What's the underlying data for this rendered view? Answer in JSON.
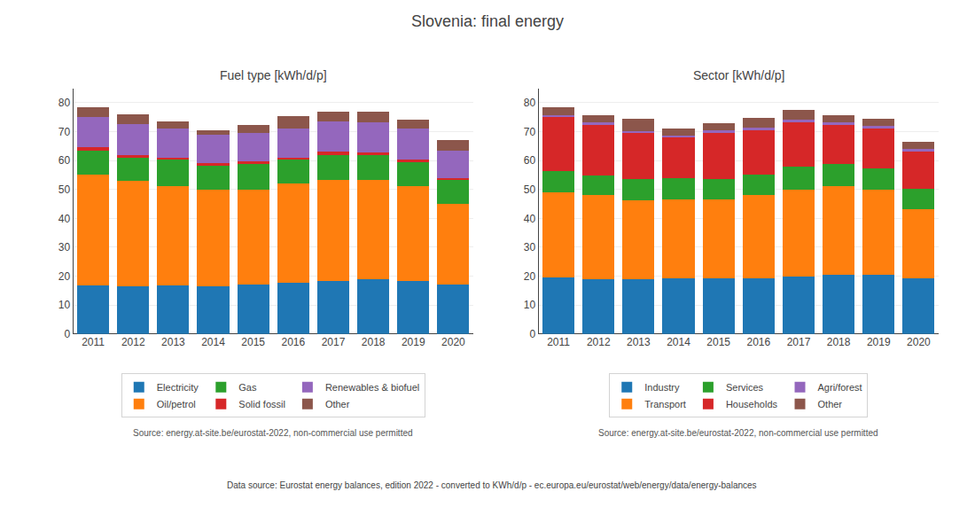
{
  "title": "Slovenia: final energy",
  "annotations": [
    "Data source: Eurostat energy balances, edition 2022 - converted to KWh/d/p - ec.europa.eu/eurostat/web/energy/data/energy-balances"
  ],
  "chart_data": [
    {
      "type": "bar",
      "stacked": true,
      "title": "Fuel type [kWh/d/p]",
      "categories": [
        "2011",
        "2012",
        "2013",
        "2014",
        "2015",
        "2016",
        "2017",
        "2018",
        "2019",
        "2020"
      ],
      "series": [
        {
          "name": "Electricity",
          "color": "#1f77b4",
          "values": [
            16.8,
            16.5,
            16.8,
            16.5,
            17.0,
            17.8,
            18.2,
            18.8,
            18.2,
            17.0
          ]
        },
        {
          "name": "Oil/petrol",
          "color": "#ff7f0e",
          "values": [
            38.2,
            36.5,
            34.3,
            33.5,
            33.0,
            34.2,
            35.0,
            34.5,
            33.0,
            28.0
          ]
        },
        {
          "name": "Gas",
          "color": "#2ca02c",
          "values": [
            8.5,
            8.0,
            9.5,
            8.5,
            9.2,
            8.5,
            8.8,
            8.5,
            8.5,
            8.5
          ]
        },
        {
          "name": "Solid fossil",
          "color": "#d62728",
          "values": [
            1.0,
            1.0,
            0.5,
            0.5,
            0.5,
            0.5,
            1.0,
            1.0,
            0.5,
            0.5
          ]
        },
        {
          "name": "Renewables & biofuel",
          "color": "#9467bd",
          "values": [
            10.5,
            10.5,
            10.0,
            10.0,
            10.0,
            10.0,
            10.5,
            10.5,
            11.0,
            9.5
          ]
        },
        {
          "name": "Other",
          "color": "#8c564b",
          "values": [
            3.5,
            3.5,
            2.5,
            1.5,
            2.5,
            4.5,
            3.5,
            3.5,
            3.0,
            3.5
          ]
        }
      ],
      "ylim": [
        0,
        85
      ],
      "yticks": [
        0,
        10,
        20,
        30,
        40,
        50,
        60,
        70,
        80
      ],
      "grid": true,
      "legend": "bottom",
      "annotations": [
        "Source: energy.at-site.be/eurostat-2022, non-commercial use permitted"
      ]
    },
    {
      "type": "bar",
      "stacked": true,
      "title": "Sector [kWh/d/p]",
      "categories": [
        "2011",
        "2012",
        "2013",
        "2014",
        "2015",
        "2016",
        "2017",
        "2018",
        "2019",
        "2020"
      ],
      "series": [
        {
          "name": "Industry",
          "color": "#1f77b4",
          "values": [
            19.5,
            18.8,
            18.8,
            19.2,
            19.2,
            19.2,
            19.8,
            20.5,
            20.5,
            19.2
          ]
        },
        {
          "name": "Transport",
          "color": "#ff7f0e",
          "values": [
            29.5,
            29.2,
            27.5,
            27.5,
            27.2,
            28.8,
            30.2,
            30.5,
            29.5,
            24.0
          ]
        },
        {
          "name": "Services",
          "color": "#2ca02c",
          "values": [
            7.5,
            6.8,
            7.2,
            7.2,
            7.2,
            7.0,
            7.8,
            7.8,
            7.2,
            7.0
          ]
        },
        {
          "name": "Households",
          "color": "#d62728",
          "values": [
            18.5,
            17.5,
            16.0,
            14.0,
            16.0,
            15.5,
            15.5,
            13.5,
            14.0,
            13.0
          ]
        },
        {
          "name": "Agri/forest",
          "color": "#9467bd",
          "values": [
            0.8,
            0.8,
            0.8,
            0.8,
            0.8,
            0.8,
            0.8,
            0.8,
            0.8,
            0.8
          ]
        },
        {
          "name": "Other",
          "color": "#8c564b",
          "values": [
            2.7,
            2.7,
            4.0,
            2.5,
            2.5,
            3.5,
            3.5,
            2.5,
            2.5,
            2.5
          ]
        }
      ],
      "ylim": [
        0,
        85
      ],
      "yticks": [
        0,
        10,
        20,
        30,
        40,
        50,
        60,
        70,
        80
      ],
      "grid": true,
      "legend": "bottom",
      "annotations": [
        "Source: energy.at-site.be/eurostat-2022, non-commercial use permitted"
      ]
    }
  ]
}
